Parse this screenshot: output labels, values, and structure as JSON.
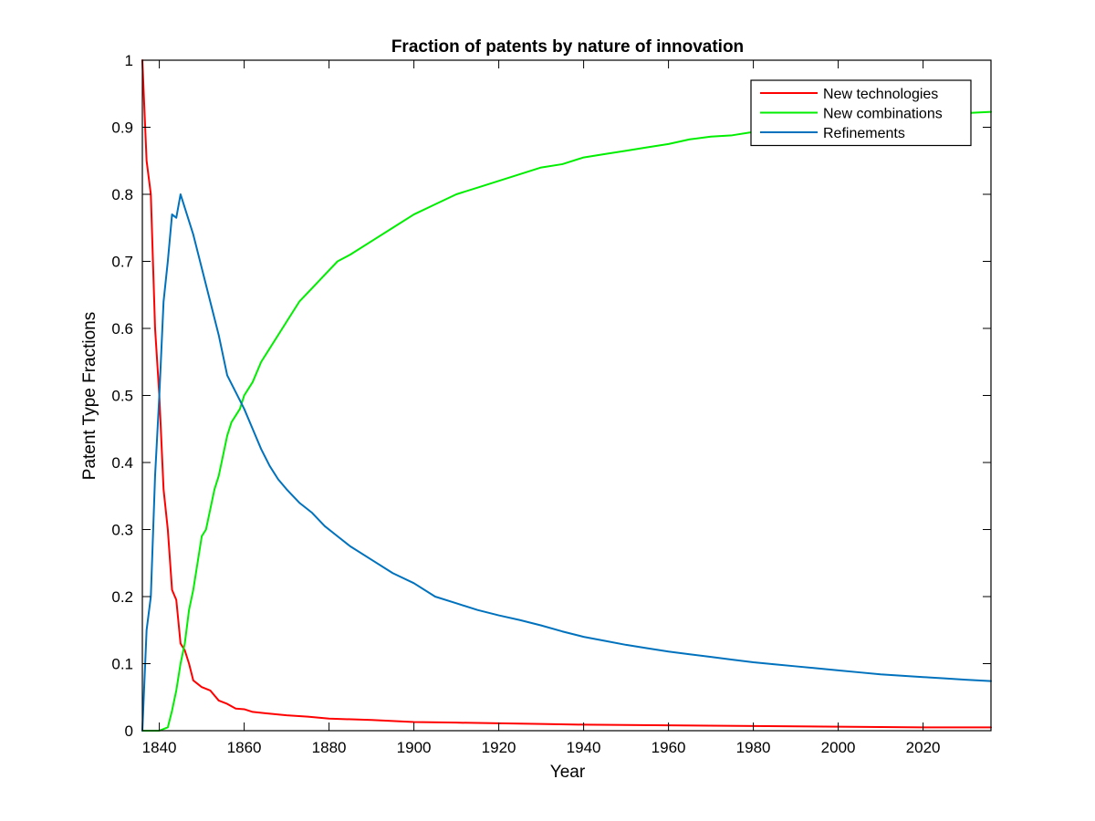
{
  "chart_data": {
    "type": "line",
    "title": "Fraction of patents by nature of innovation",
    "xlabel": "Year",
    "ylabel": "Patent Type Fractions",
    "xlim": [
      1836,
      2036
    ],
    "ylim": [
      0,
      1
    ],
    "x_ticks": [
      1840,
      1860,
      1880,
      1900,
      1920,
      1940,
      1960,
      1980,
      2000,
      2020
    ],
    "y_ticks": [
      0,
      0.1,
      0.2,
      0.3,
      0.4,
      0.5,
      0.6,
      0.7,
      0.8,
      0.9,
      1
    ],
    "y_tick_labels": [
      "0",
      "0.1",
      "0.2",
      "0.3",
      "0.4",
      "0.5",
      "0.6",
      "0.7",
      "0.8",
      "0.9",
      "1"
    ],
    "x_tick_labels": [
      "1840",
      "1860",
      "1880",
      "1900",
      "1920",
      "1940",
      "1960",
      "1980",
      "2000",
      "2020"
    ],
    "grid": false,
    "legend_position": "top-right",
    "series": [
      {
        "name": "New technologies",
        "color": "#ff0000",
        "x": [
          1836,
          1837,
          1838,
          1839,
          1840,
          1841,
          1842,
          1843,
          1844,
          1845,
          1846,
          1847,
          1848,
          1849,
          1850,
          1852,
          1854,
          1856,
          1858,
          1860,
          1862,
          1865,
          1870,
          1875,
          1880,
          1890,
          1900,
          1910,
          1920,
          1930,
          1940,
          1960,
          1980,
          2000,
          2020,
          2036
        ],
        "values": [
          1.0,
          0.85,
          0.8,
          0.6,
          0.5,
          0.36,
          0.3,
          0.21,
          0.195,
          0.13,
          0.12,
          0.1,
          0.075,
          0.07,
          0.065,
          0.06,
          0.045,
          0.04,
          0.033,
          0.032,
          0.028,
          0.026,
          0.023,
          0.021,
          0.018,
          0.016,
          0.013,
          0.012,
          0.011,
          0.01,
          0.009,
          0.008,
          0.007,
          0.006,
          0.005,
          0.005
        ]
      },
      {
        "name": "New combinations",
        "color": "#00ee00",
        "x": [
          1836,
          1838,
          1840,
          1842,
          1843,
          1844,
          1845,
          1846,
          1847,
          1848,
          1849,
          1850,
          1851,
          1852,
          1853,
          1854,
          1855,
          1856,
          1857,
          1858,
          1859,
          1860,
          1862,
          1864,
          1866,
          1868,
          1870,
          1873,
          1876,
          1879,
          1882,
          1885,
          1890,
          1895,
          1900,
          1905,
          1910,
          1915,
          1920,
          1925,
          1930,
          1935,
          1940,
          1945,
          1950,
          1955,
          1960,
          1965,
          1970,
          1975,
          1980,
          1985,
          1990,
          1995,
          2000,
          2005,
          2010,
          2015,
          2020,
          2025,
          2030,
          2036
        ],
        "values": [
          0.0,
          0.0,
          0.0,
          0.005,
          0.03,
          0.06,
          0.1,
          0.13,
          0.18,
          0.21,
          0.25,
          0.29,
          0.3,
          0.33,
          0.36,
          0.38,
          0.41,
          0.44,
          0.46,
          0.47,
          0.48,
          0.5,
          0.52,
          0.55,
          0.57,
          0.59,
          0.61,
          0.64,
          0.66,
          0.68,
          0.7,
          0.71,
          0.73,
          0.75,
          0.77,
          0.785,
          0.8,
          0.81,
          0.82,
          0.83,
          0.84,
          0.845,
          0.855,
          0.86,
          0.865,
          0.87,
          0.875,
          0.882,
          0.886,
          0.888,
          0.893,
          0.898,
          0.902,
          0.906,
          0.908,
          0.911,
          0.913,
          0.915,
          0.917,
          0.919,
          0.921,
          0.923
        ]
      },
      {
        "name": "Refinements",
        "color": "#0072bd",
        "x": [
          1836,
          1837,
          1838,
          1839,
          1840,
          1841,
          1842,
          1843,
          1844,
          1845,
          1846,
          1848,
          1850,
          1852,
          1854,
          1856,
          1858,
          1860,
          1862,
          1864,
          1866,
          1868,
          1870,
          1873,
          1876,
          1879,
          1882,
          1885,
          1890,
          1895,
          1900,
          1905,
          1910,
          1915,
          1920,
          1925,
          1930,
          1935,
          1940,
          1945,
          1950,
          1955,
          1960,
          1965,
          1970,
          1975,
          1980,
          1985,
          1990,
          1995,
          2000,
          2005,
          2010,
          2015,
          2020,
          2025,
          2030,
          2036
        ],
        "values": [
          0.0,
          0.15,
          0.2,
          0.38,
          0.5,
          0.64,
          0.7,
          0.77,
          0.765,
          0.8,
          0.78,
          0.74,
          0.69,
          0.64,
          0.59,
          0.53,
          0.505,
          0.48,
          0.45,
          0.42,
          0.395,
          0.375,
          0.36,
          0.34,
          0.325,
          0.305,
          0.29,
          0.275,
          0.255,
          0.235,
          0.22,
          0.2,
          0.19,
          0.18,
          0.172,
          0.165,
          0.157,
          0.148,
          0.14,
          0.134,
          0.128,
          0.123,
          0.118,
          0.114,
          0.11,
          0.106,
          0.102,
          0.099,
          0.096,
          0.093,
          0.09,
          0.087,
          0.084,
          0.082,
          0.08,
          0.078,
          0.076,
          0.074
        ]
      }
    ]
  }
}
